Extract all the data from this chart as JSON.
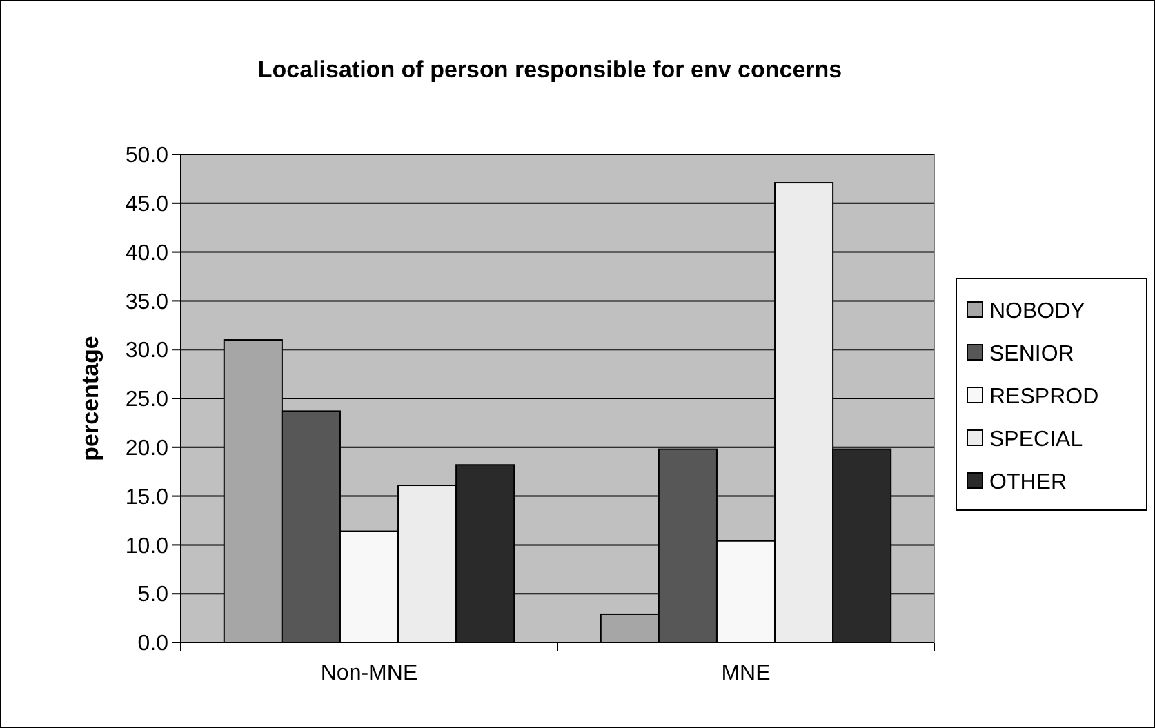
{
  "chart_data": {
    "type": "bar",
    "title": "Localisation of person responsible for env concerns",
    "ylabel": "percentage",
    "categories": [
      "Non-MNE",
      "MNE"
    ],
    "series": [
      {
        "name": "NOBODY",
        "color": "#a6a6a6",
        "values": [
          31.0,
          2.9
        ]
      },
      {
        "name": "SENIOR",
        "color": "#575757",
        "values": [
          23.7,
          19.8
        ]
      },
      {
        "name": "RESPROD",
        "color": "#f8f8f8",
        "values": [
          11.4,
          10.4
        ]
      },
      {
        "name": "SPECIAL",
        "color": "#ececec",
        "values": [
          16.1,
          47.1
        ]
      },
      {
        "name": "OTHER",
        "color": "#2a2a2a",
        "values": [
          18.2,
          19.8
        ]
      }
    ],
    "ylim": [
      0,
      50
    ],
    "yticks": [
      {
        "value": 0,
        "label": "0.0"
      },
      {
        "value": 5,
        "label": "5.0"
      },
      {
        "value": 10,
        "label": "10.0"
      },
      {
        "value": 15,
        "label": "15.0"
      },
      {
        "value": 20,
        "label": "20.0"
      },
      {
        "value": 25,
        "label": "25.0"
      },
      {
        "value": 30,
        "label": "30.0"
      },
      {
        "value": 35,
        "label": "35.0"
      },
      {
        "value": 40,
        "label": "40.0"
      },
      {
        "value": 45,
        "label": "45.0"
      },
      {
        "value": 50,
        "label": "50.0"
      }
    ],
    "grid": "y",
    "legend": "right"
  }
}
